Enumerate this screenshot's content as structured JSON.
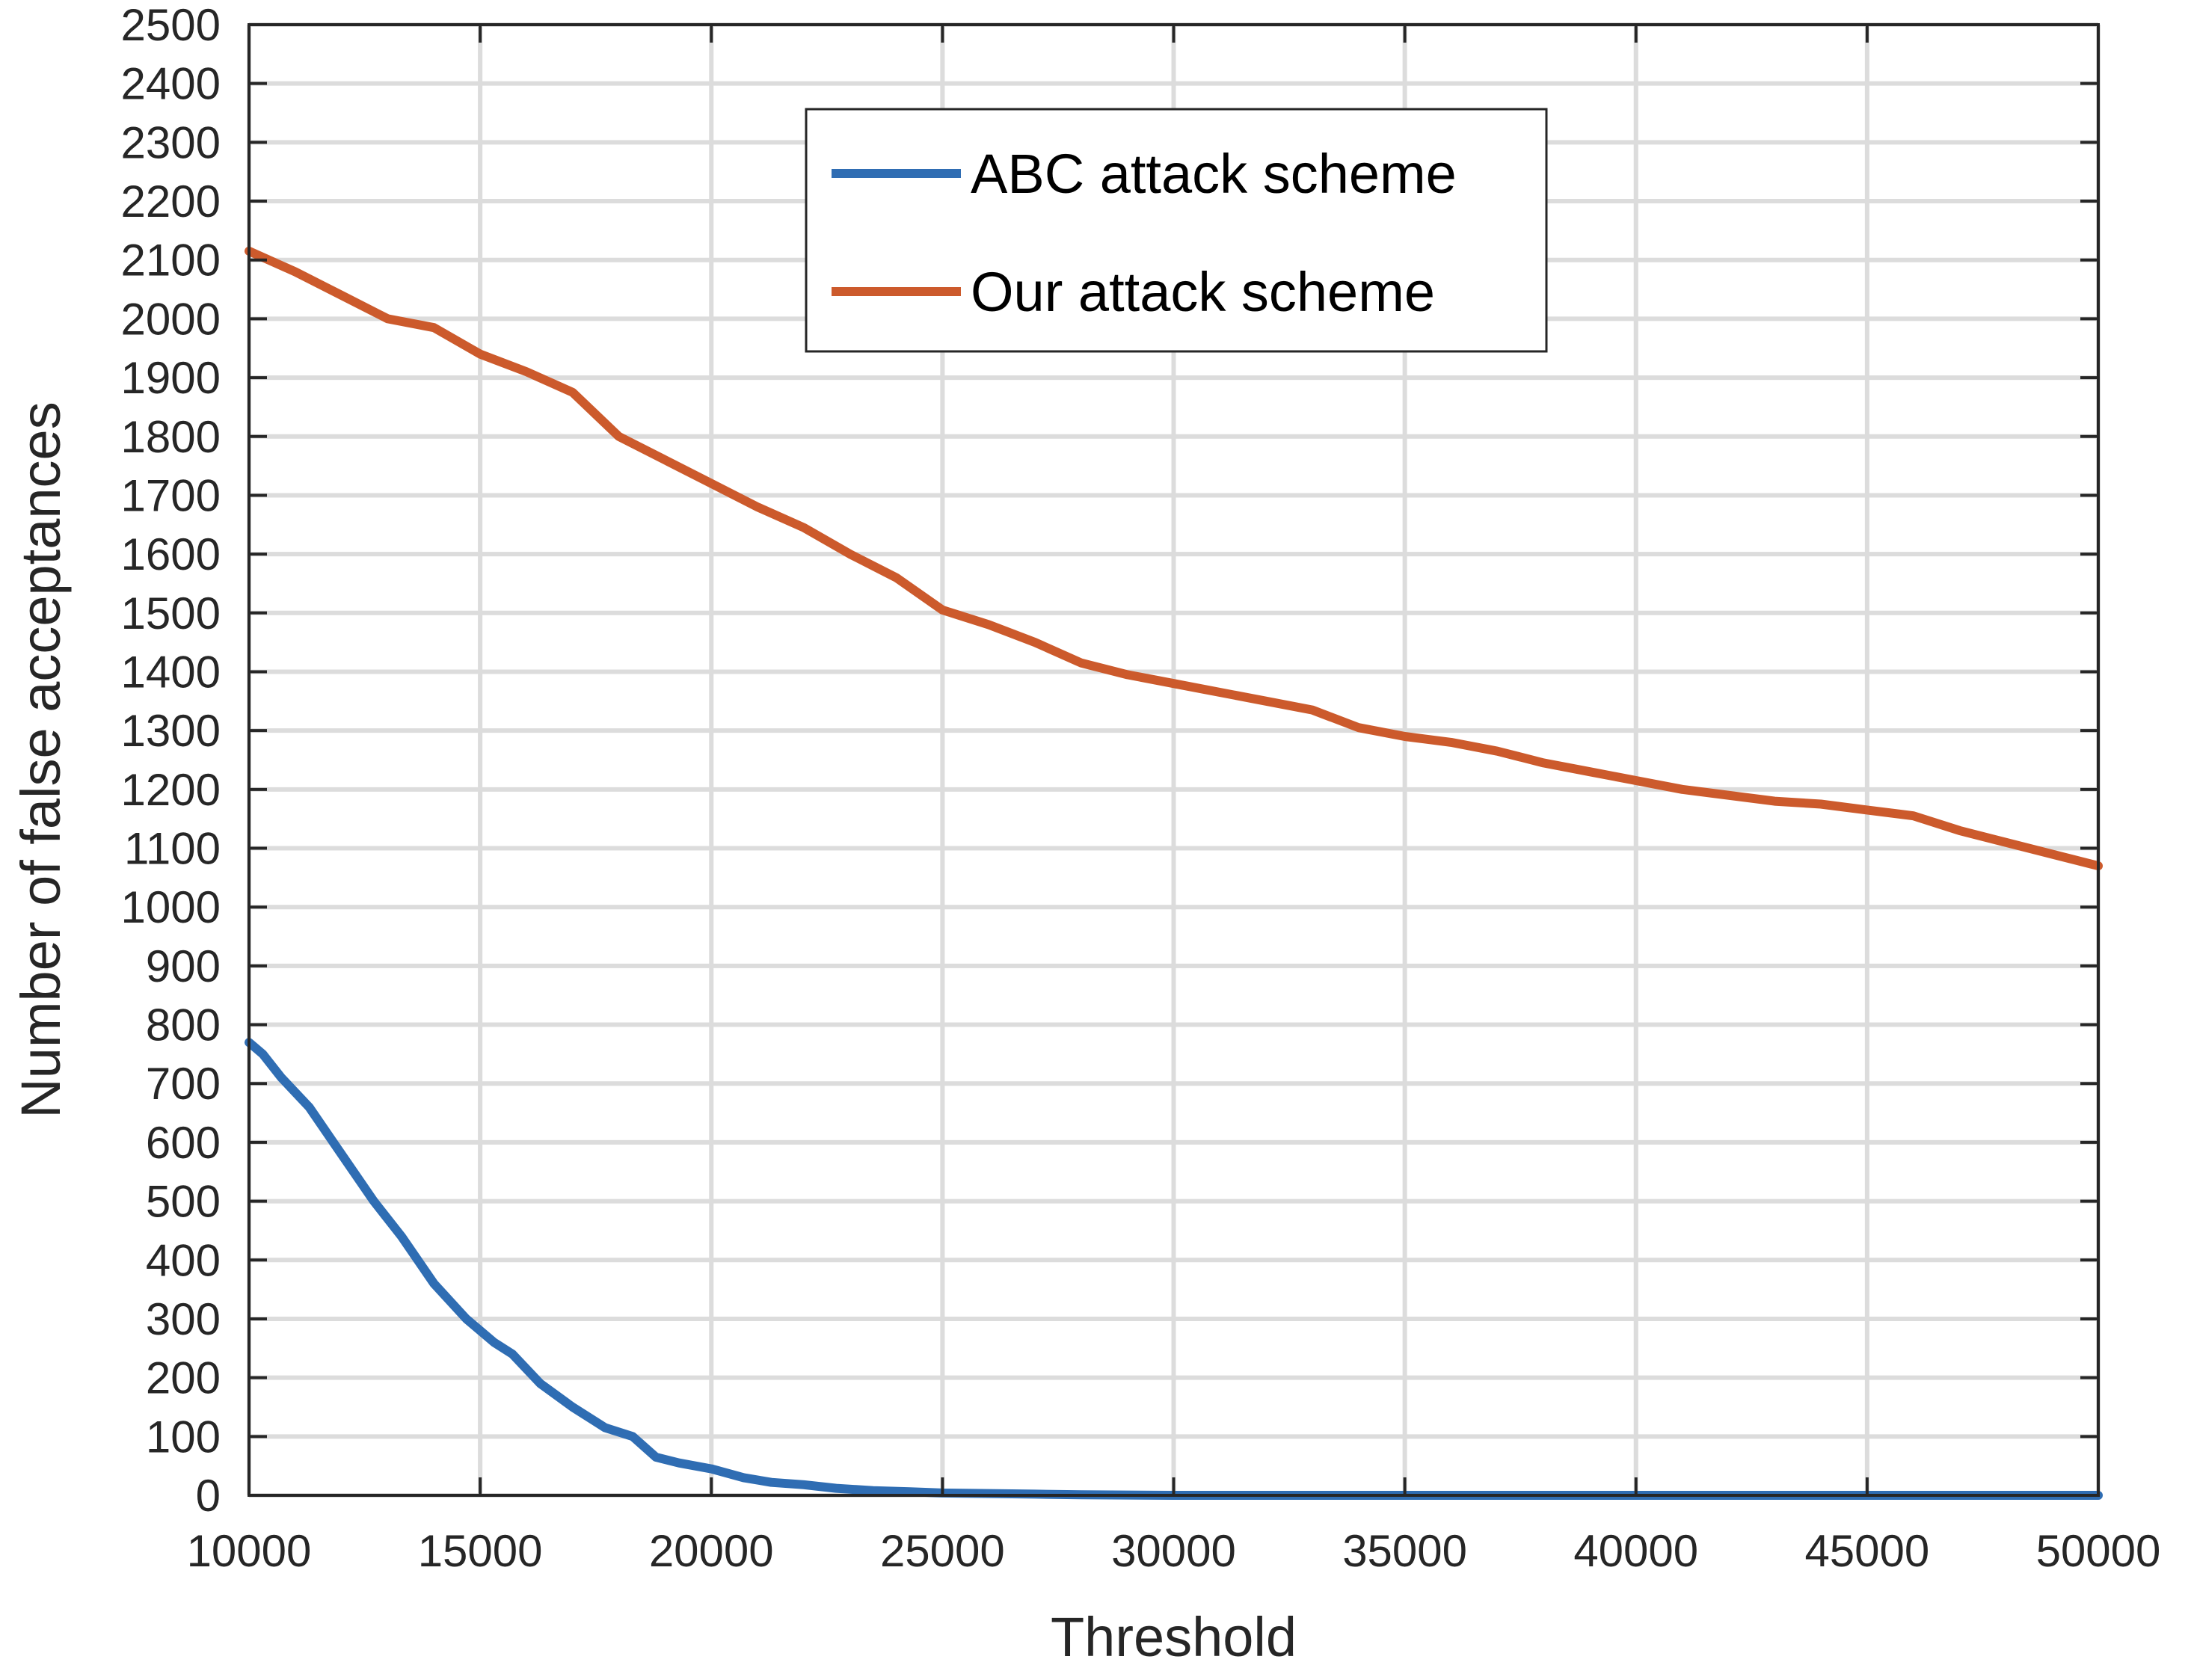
{
  "chart_data": {
    "type": "line",
    "title": "",
    "xlabel": "Threshold",
    "ylabel": "Number of false acceptances",
    "xlim": [
      10000,
      50000
    ],
    "ylim": [
      0,
      2500
    ],
    "xticks": [
      10000,
      15000,
      20000,
      25000,
      30000,
      35000,
      40000,
      45000,
      50000
    ],
    "yticks": [
      0,
      100,
      200,
      300,
      400,
      500,
      600,
      700,
      800,
      900,
      1000,
      1100,
      1200,
      1300,
      1400,
      1500,
      1600,
      1700,
      1800,
      1900,
      2000,
      2100,
      2200,
      2300,
      2400,
      2500
    ],
    "grid": true,
    "legend_position": "top-center",
    "series": [
      {
        "name": "ABC attack scheme",
        "color": "#2f6db3",
        "x": [
          10000,
          10300,
          10700,
          11300,
          12000,
          12700,
          13300,
          14000,
          14700,
          15300,
          15700,
          16300,
          17000,
          17700,
          18300,
          18800,
          19300,
          20000,
          20700,
          21300,
          22000,
          22700,
          23500,
          24300,
          25000,
          26000,
          27000,
          28000,
          30000,
          35000,
          40000,
          45000,
          50000
        ],
        "y": [
          770,
          750,
          710,
          660,
          580,
          500,
          440,
          360,
          300,
          260,
          240,
          190,
          150,
          115,
          100,
          65,
          55,
          45,
          30,
          22,
          18,
          12,
          8,
          6,
          4,
          3,
          2,
          1,
          0,
          0,
          0,
          0,
          0
        ]
      },
      {
        "name": "Our attack scheme",
        "color": "#cc5a2c",
        "x": [
          10000,
          11000,
          12000,
          13000,
          14000,
          15000,
          16000,
          17000,
          18000,
          19000,
          20000,
          21000,
          22000,
          23000,
          24000,
          25000,
          26000,
          27000,
          28000,
          29000,
          30000,
          31000,
          32000,
          33000,
          34000,
          35000,
          36000,
          37000,
          38000,
          39000,
          40000,
          41000,
          42000,
          43000,
          44000,
          45000,
          46000,
          47000,
          48000,
          49000,
          50000
        ],
        "y": [
          2115,
          2080,
          2040,
          2000,
          1985,
          1940,
          1910,
          1875,
          1800,
          1760,
          1720,
          1680,
          1645,
          1600,
          1560,
          1505,
          1480,
          1450,
          1415,
          1395,
          1380,
          1365,
          1350,
          1335,
          1305,
          1290,
          1280,
          1265,
          1245,
          1230,
          1215,
          1200,
          1190,
          1180,
          1175,
          1165,
          1155,
          1130,
          1110,
          1090,
          1070
        ]
      }
    ]
  }
}
